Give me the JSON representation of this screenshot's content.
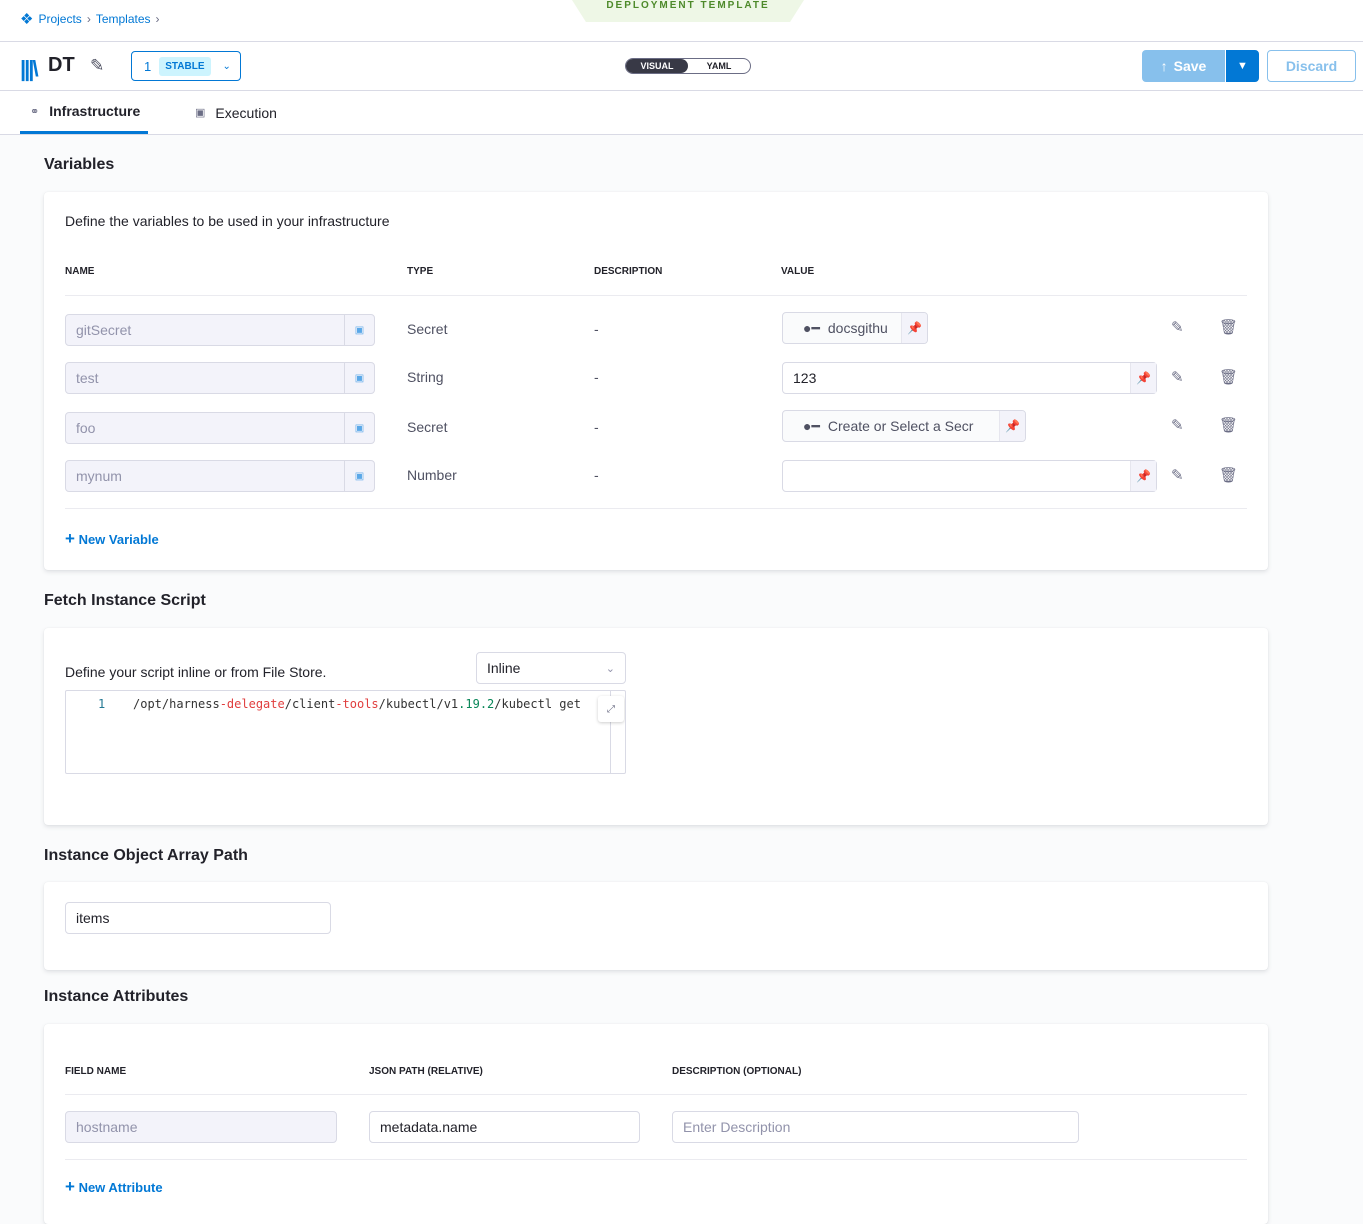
{
  "breadcrumb": {
    "items": [
      "Projects",
      "Templates"
    ]
  },
  "banner": "DEPLOYMENT TEMPLATE",
  "header": {
    "title": "DT",
    "version": "1",
    "version_label": "STABLE",
    "toggle": [
      "VISUAL",
      "YAML"
    ],
    "save": "Save",
    "discard": "Discard"
  },
  "tabs": [
    {
      "label": "Infrastructure",
      "active": true
    },
    {
      "label": "Execution",
      "active": false
    }
  ],
  "variables": {
    "title": "Variables",
    "description": "Define the variables to be used in your infrastructure",
    "columns": [
      "NAME",
      "TYPE",
      "DESCRIPTION",
      "VALUE"
    ],
    "rows": [
      {
        "name": "gitSecret",
        "type": "Secret",
        "description": "-",
        "value": "docsgithu",
        "kind": "secret"
      },
      {
        "name": "test",
        "type": "String",
        "description": "-",
        "value": "123",
        "kind": "text"
      },
      {
        "name": "foo",
        "type": "Secret",
        "description": "-",
        "value": "Create or Select a Secr",
        "kind": "secret"
      },
      {
        "name": "mynum",
        "type": "Number",
        "description": "-",
        "value": "",
        "kind": "text"
      }
    ],
    "new_label": "New Variable"
  },
  "fetch": {
    "title": "Fetch Instance Script",
    "description": "Define your script inline or from File Store.",
    "select": "Inline",
    "line_no": "1",
    "code": [
      {
        "t": "/opt/harness",
        "c": ""
      },
      {
        "t": "-delegate",
        "c": "red"
      },
      {
        "t": "/client",
        "c": ""
      },
      {
        "t": "-tools",
        "c": "red"
      },
      {
        "t": "/kubectl/v1",
        "c": ""
      },
      {
        "t": ".19.2",
        "c": "grn"
      },
      {
        "t": "/kubectl get",
        "c": ""
      }
    ]
  },
  "array_path": {
    "title": "Instance Object Array Path",
    "value": "items"
  },
  "attributes": {
    "title": "Instance Attributes",
    "columns": [
      "FIELD NAME",
      "JSON PATH (RELATIVE)",
      "DESCRIPTION (OPTIONAL)"
    ],
    "row": {
      "field": "hostname",
      "path": "metadata.name",
      "description_placeholder": "Enter Description"
    },
    "new_label": "New Attribute"
  },
  "colors": {
    "accent": "#0278d5",
    "banner_bg": "#eef7e6"
  }
}
